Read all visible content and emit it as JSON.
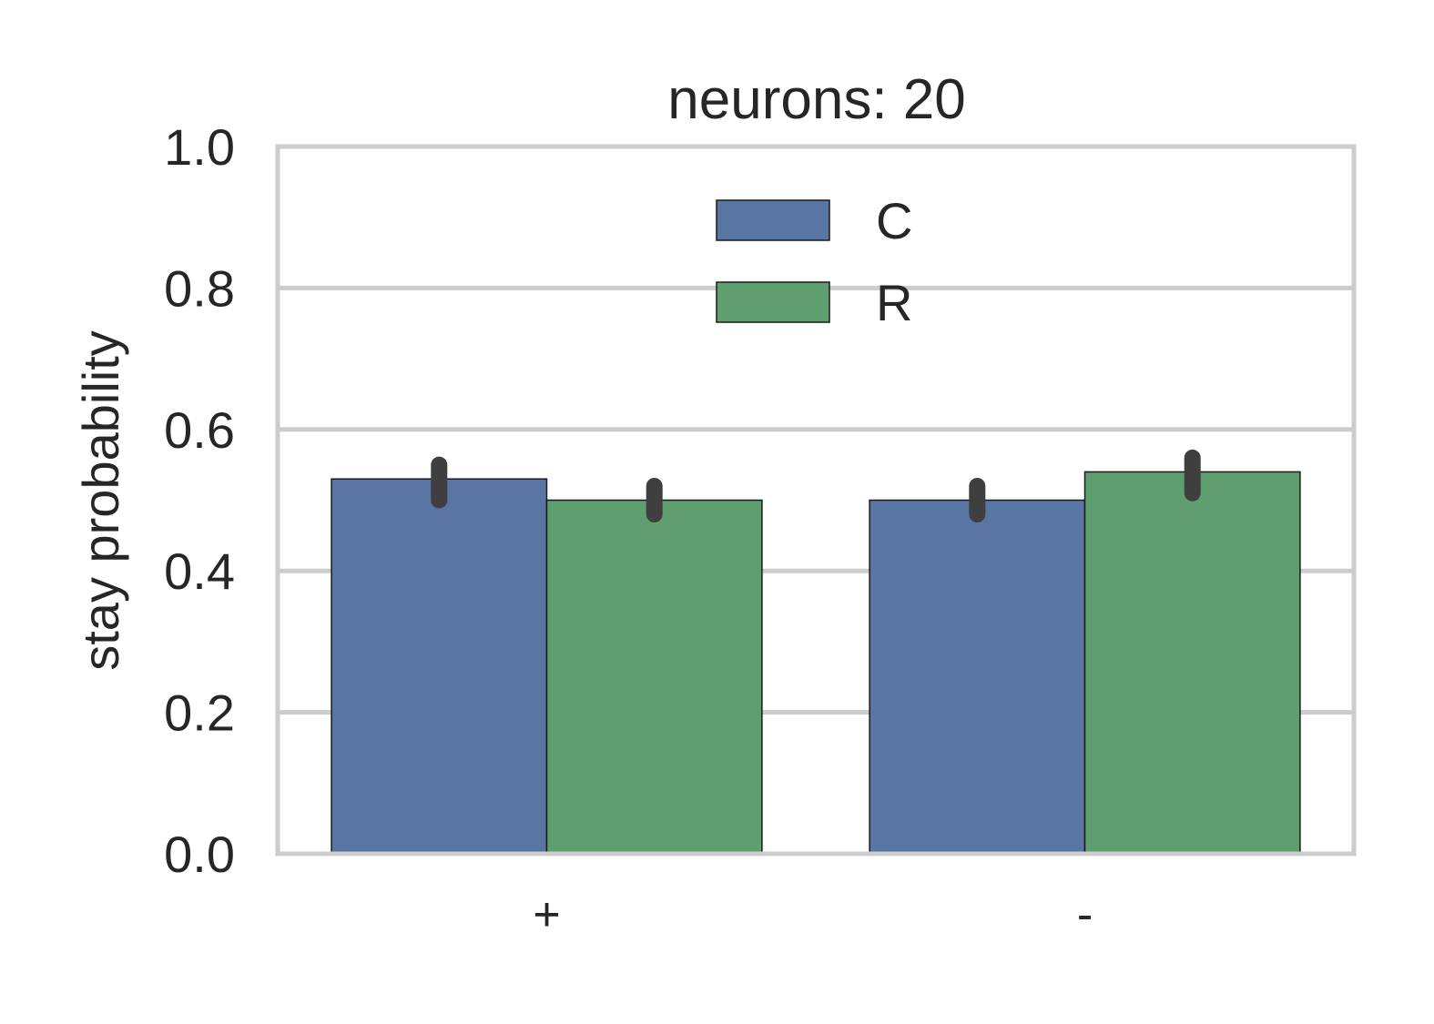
{
  "chart_data": {
    "type": "bar",
    "title": "neurons: 20",
    "xlabel": "",
    "ylabel": "stay probability",
    "categories": [
      "+",
      "-"
    ],
    "series": [
      {
        "name": "C",
        "color": "#5975a4",
        "values": [
          0.53,
          0.5
        ],
        "error_low": [
          0.5,
          0.48
        ],
        "error_high": [
          0.55,
          0.52
        ]
      },
      {
        "name": "R",
        "color": "#5f9e6e",
        "values": [
          0.5,
          0.54
        ],
        "error_low": [
          0.48,
          0.51
        ],
        "error_high": [
          0.52,
          0.56
        ]
      }
    ],
    "ylim": [
      0.0,
      1.0
    ],
    "yticks": [
      "0.0",
      "0.2",
      "0.4",
      "0.6",
      "0.8",
      "1.0"
    ],
    "grid": "horizontal",
    "legend_position": "upper center",
    "error_bar_color": "#3f3f3f"
  }
}
